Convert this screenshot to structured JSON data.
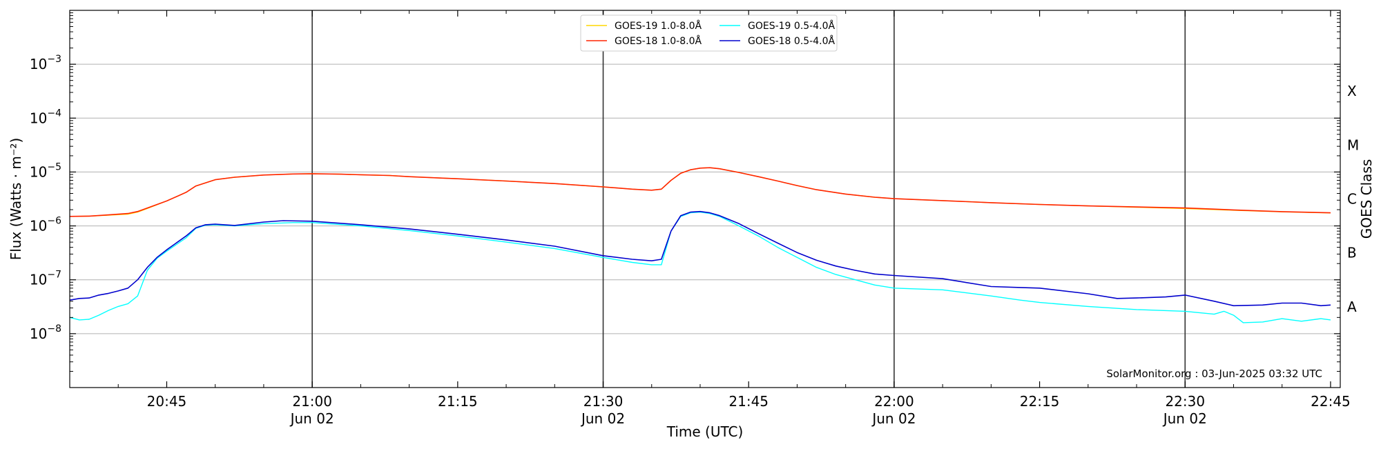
{
  "chart_data": {
    "type": "line",
    "title": "",
    "xlabel": "Time (UTC)",
    "ylabel": "Flux (Watts · m⁻²)",
    "right_label": "GOES Class",
    "yscale": "log",
    "ylim": [
      1e-09,
      0.01
    ],
    "xlim": [
      "20:35",
      "22:46"
    ],
    "grid": "horizontal",
    "legend_position": "top-center",
    "watermark": "SolarMonitor.org : 03-Jun-2025 03:32 UTC",
    "yticks": [
      {
        "value": 1e-08,
        "base": "10",
        "exp": "−8"
      },
      {
        "value": 1e-07,
        "base": "10",
        "exp": "−7"
      },
      {
        "value": 1e-06,
        "base": "10",
        "exp": "−6"
      },
      {
        "value": 1e-05,
        "base": "10",
        "exp": "−5"
      },
      {
        "value": 0.0001,
        "base": "10",
        "exp": "−4"
      },
      {
        "value": 0.001,
        "base": "10",
        "exp": "−3"
      }
    ],
    "xticks": [
      {
        "t": "20:45",
        "label": "20:45",
        "sub": ""
      },
      {
        "t": "21:00",
        "label": "21:00",
        "sub": "Jun 02"
      },
      {
        "t": "21:15",
        "label": "21:15",
        "sub": ""
      },
      {
        "t": "21:30",
        "label": "21:30",
        "sub": "Jun 02"
      },
      {
        "t": "21:45",
        "label": "21:45",
        "sub": ""
      },
      {
        "t": "22:00",
        "label": "22:00",
        "sub": "Jun 02"
      },
      {
        "t": "22:15",
        "label": "22:15",
        "sub": ""
      },
      {
        "t": "22:30",
        "label": "22:30",
        "sub": "Jun 02"
      },
      {
        "t": "22:45",
        "label": "22:45",
        "sub": ""
      }
    ],
    "vlines": [
      "21:00",
      "21:30",
      "22:00",
      "22:30"
    ],
    "goes_classes": [
      {
        "label": "A",
        "value": 3.16e-08
      },
      {
        "label": "B",
        "value": 3.16e-07
      },
      {
        "label": "C",
        "value": 3.16e-06
      },
      {
        "label": "M",
        "value": 3.16e-05
      },
      {
        "label": "X",
        "value": 0.000316
      }
    ],
    "series": [
      {
        "name": "GOES-19 1.0-8.0Å",
        "color": "#ffd700",
        "points": [
          [
            "20:35",
            1.5e-06
          ],
          [
            "20:37",
            1.52e-06
          ],
          [
            "20:39",
            1.58e-06
          ],
          [
            "20:41",
            1.65e-06
          ],
          [
            "20:42",
            1.8e-06
          ],
          [
            "20:43",
            2.1e-06
          ],
          [
            "20:45",
            2.9e-06
          ],
          [
            "20:47",
            4.2e-06
          ],
          [
            "20:48",
            5.5e-06
          ],
          [
            "20:50",
            7.2e-06
          ],
          [
            "20:52",
            8e-06
          ],
          [
            "20:55",
            8.8e-06
          ],
          [
            "20:58",
            9.2e-06
          ],
          [
            "21:00",
            9.3e-06
          ],
          [
            "21:03",
            9.1e-06
          ],
          [
            "21:05",
            8.9e-06
          ],
          [
            "21:08",
            8.6e-06
          ],
          [
            "21:10",
            8.2e-06
          ],
          [
            "21:15",
            7.5e-06
          ],
          [
            "21:20",
            6.8e-06
          ],
          [
            "21:25",
            6.1e-06
          ],
          [
            "21:30",
            5.3e-06
          ],
          [
            "21:33",
            4.8e-06
          ],
          [
            "21:35",
            4.6e-06
          ],
          [
            "21:36",
            4.8e-06
          ],
          [
            "21:37",
            7e-06
          ],
          [
            "21:38",
            9.5e-06
          ],
          [
            "21:39",
            1.1e-05
          ],
          [
            "21:40",
            1.18e-05
          ],
          [
            "21:41",
            1.2e-05
          ],
          [
            "21:42",
            1.15e-05
          ],
          [
            "21:44",
            9.8e-06
          ],
          [
            "21:46",
            8.2e-06
          ],
          [
            "21:48",
            6.8e-06
          ],
          [
            "21:50",
            5.6e-06
          ],
          [
            "21:52",
            4.7e-06
          ],
          [
            "21:55",
            3.9e-06
          ],
          [
            "21:58",
            3.4e-06
          ],
          [
            "22:00",
            3.2e-06
          ],
          [
            "22:05",
            2.95e-06
          ],
          [
            "22:10",
            2.7e-06
          ],
          [
            "22:15",
            2.5e-06
          ],
          [
            "22:20",
            2.35e-06
          ],
          [
            "22:25",
            2.22e-06
          ],
          [
            "22:30",
            2.1e-06
          ],
          [
            "22:35",
            1.95e-06
          ],
          [
            "22:40",
            1.82e-06
          ],
          [
            "22:45",
            1.74e-06
          ]
        ]
      },
      {
        "name": "GOES-18 1.0-8.0Å",
        "color": "#ff2400",
        "points": [
          [
            "20:35",
            1.5e-06
          ],
          [
            "20:37",
            1.52e-06
          ],
          [
            "20:39",
            1.6e-06
          ],
          [
            "20:41",
            1.7e-06
          ],
          [
            "20:42",
            1.85e-06
          ],
          [
            "20:43",
            2.15e-06
          ],
          [
            "20:45",
            2.9e-06
          ],
          [
            "20:47",
            4.2e-06
          ],
          [
            "20:48",
            5.5e-06
          ],
          [
            "20:50",
            7.2e-06
          ],
          [
            "20:52",
            8e-06
          ],
          [
            "20:55",
            8.8e-06
          ],
          [
            "20:58",
            9.2e-06
          ],
          [
            "21:00",
            9.3e-06
          ],
          [
            "21:03",
            9.1e-06
          ],
          [
            "21:05",
            8.9e-06
          ],
          [
            "21:08",
            8.6e-06
          ],
          [
            "21:10",
            8.2e-06
          ],
          [
            "21:15",
            7.5e-06
          ],
          [
            "21:20",
            6.8e-06
          ],
          [
            "21:25",
            6.1e-06
          ],
          [
            "21:30",
            5.3e-06
          ],
          [
            "21:33",
            4.8e-06
          ],
          [
            "21:35",
            4.6e-06
          ],
          [
            "21:36",
            4.8e-06
          ],
          [
            "21:37",
            7e-06
          ],
          [
            "21:38",
            9.5e-06
          ],
          [
            "21:39",
            1.1e-05
          ],
          [
            "21:40",
            1.18e-05
          ],
          [
            "21:41",
            1.2e-05
          ],
          [
            "21:42",
            1.15e-05
          ],
          [
            "21:44",
            9.8e-06
          ],
          [
            "21:46",
            8.2e-06
          ],
          [
            "21:48",
            6.8e-06
          ],
          [
            "21:50",
            5.6e-06
          ],
          [
            "21:52",
            4.7e-06
          ],
          [
            "21:55",
            3.9e-06
          ],
          [
            "21:58",
            3.4e-06
          ],
          [
            "22:00",
            3.2e-06
          ],
          [
            "22:05",
            2.95e-06
          ],
          [
            "22:10",
            2.7e-06
          ],
          [
            "22:15",
            2.5e-06
          ],
          [
            "22:20",
            2.35e-06
          ],
          [
            "22:25",
            2.25e-06
          ],
          [
            "22:30",
            2.15e-06
          ],
          [
            "22:35",
            1.98e-06
          ],
          [
            "22:40",
            1.84e-06
          ],
          [
            "22:45",
            1.75e-06
          ]
        ]
      },
      {
        "name": "GOES-19 0.5-4.0Å",
        "color": "#00ffff",
        "points": [
          [
            "20:35",
            2e-08
          ],
          [
            "20:36",
            1.8e-08
          ],
          [
            "20:37",
            1.85e-08
          ],
          [
            "20:38",
            2.2e-08
          ],
          [
            "20:39",
            2.7e-08
          ],
          [
            "20:40",
            3.2e-08
          ],
          [
            "20:41",
            3.6e-08
          ],
          [
            "20:42",
            5e-08
          ],
          [
            "20:43",
            1.5e-07
          ],
          [
            "20:44",
            2.5e-07
          ],
          [
            "20:45",
            3.4e-07
          ],
          [
            "20:47",
            6e-07
          ],
          [
            "20:48",
            9e-07
          ],
          [
            "20:49",
            1.03e-06
          ],
          [
            "20:50",
            1.05e-06
          ],
          [
            "20:52",
            1e-06
          ],
          [
            "20:55",
            1.1e-06
          ],
          [
            "20:58",
            1.15e-06
          ],
          [
            "21:00",
            1.15e-06
          ],
          [
            "21:05",
            1e-06
          ],
          [
            "21:10",
            8.2e-07
          ],
          [
            "21:15",
            6.5e-07
          ],
          [
            "21:20",
            5e-07
          ],
          [
            "21:25",
            3.8e-07
          ],
          [
            "21:30",
            2.6e-07
          ],
          [
            "21:33",
            2.1e-07
          ],
          [
            "21:35",
            1.9e-07
          ],
          [
            "21:36",
            1.9e-07
          ],
          [
            "21:37",
            8e-07
          ],
          [
            "21:38",
            1.5e-06
          ],
          [
            "21:39",
            1.75e-06
          ],
          [
            "21:40",
            1.8e-06
          ],
          [
            "21:41",
            1.7e-06
          ],
          [
            "21:42",
            1.5e-06
          ],
          [
            "21:44",
            1e-06
          ],
          [
            "21:46",
            6.5e-07
          ],
          [
            "21:48",
            4e-07
          ],
          [
            "21:50",
            2.6e-07
          ],
          [
            "21:52",
            1.7e-07
          ],
          [
            "21:54",
            1.25e-07
          ],
          [
            "21:56",
            1e-07
          ],
          [
            "21:58",
            8e-08
          ],
          [
            "22:00",
            7e-08
          ],
          [
            "22:05",
            6.5e-08
          ],
          [
            "22:10",
            5e-08
          ],
          [
            "22:13",
            4.2e-08
          ],
          [
            "22:15",
            3.8e-08
          ],
          [
            "22:20",
            3.2e-08
          ],
          [
            "22:25",
            2.8e-08
          ],
          [
            "22:30",
            2.6e-08
          ],
          [
            "22:33",
            2.3e-08
          ],
          [
            "22:34",
            2.6e-08
          ],
          [
            "22:35",
            2.2e-08
          ],
          [
            "22:36",
            1.6e-08
          ],
          [
            "22:38",
            1.65e-08
          ],
          [
            "22:40",
            1.9e-08
          ],
          [
            "22:42",
            1.7e-08
          ],
          [
            "22:44",
            1.9e-08
          ],
          [
            "22:45",
            1.8e-08
          ]
        ]
      },
      {
        "name": "GOES-18 0.5-4.0Å",
        "color": "#0000cd",
        "points": [
          [
            "20:35",
            4.2e-08
          ],
          [
            "20:36",
            4.5e-08
          ],
          [
            "20:37",
            4.6e-08
          ],
          [
            "20:38",
            5.2e-08
          ],
          [
            "20:39",
            5.6e-08
          ],
          [
            "20:40",
            6.2e-08
          ],
          [
            "20:41",
            7e-08
          ],
          [
            "20:42",
            1e-07
          ],
          [
            "20:43",
            1.7e-07
          ],
          [
            "20:44",
            2.6e-07
          ],
          [
            "20:45",
            3.6e-07
          ],
          [
            "20:47",
            6.5e-07
          ],
          [
            "20:48",
            9.2e-07
          ],
          [
            "20:49",
            1.05e-06
          ],
          [
            "20:50",
            1.08e-06
          ],
          [
            "20:52",
            1.02e-06
          ],
          [
            "20:55",
            1.18e-06
          ],
          [
            "20:57",
            1.25e-06
          ],
          [
            "21:00",
            1.22e-06
          ],
          [
            "21:05",
            1.05e-06
          ],
          [
            "21:10",
            8.8e-07
          ],
          [
            "21:15",
            7e-07
          ],
          [
            "21:20",
            5.5e-07
          ],
          [
            "21:25",
            4.2e-07
          ],
          [
            "21:30",
            2.8e-07
          ],
          [
            "21:33",
            2.4e-07
          ],
          [
            "21:35",
            2.25e-07
          ],
          [
            "21:36",
            2.4e-07
          ],
          [
            "21:37",
            8e-07
          ],
          [
            "21:38",
            1.55e-06
          ],
          [
            "21:39",
            1.8e-06
          ],
          [
            "21:40",
            1.85e-06
          ],
          [
            "21:41",
            1.75e-06
          ],
          [
            "21:42",
            1.55e-06
          ],
          [
            "21:44",
            1.1e-06
          ],
          [
            "21:46",
            7.2e-07
          ],
          [
            "21:48",
            4.8e-07
          ],
          [
            "21:50",
            3.2e-07
          ],
          [
            "21:52",
            2.3e-07
          ],
          [
            "21:54",
            1.8e-07
          ],
          [
            "21:56",
            1.5e-07
          ],
          [
            "21:58",
            1.28e-07
          ],
          [
            "22:00",
            1.2e-07
          ],
          [
            "22:05",
            1.05e-07
          ],
          [
            "22:10",
            7.5e-08
          ],
          [
            "22:13",
            7.2e-08
          ],
          [
            "22:15",
            7e-08
          ],
          [
            "22:20",
            5.5e-08
          ],
          [
            "22:23",
            4.5e-08
          ],
          [
            "22:25",
            4.6e-08
          ],
          [
            "22:28",
            4.8e-08
          ],
          [
            "22:30",
            5.2e-08
          ],
          [
            "22:33",
            4e-08
          ],
          [
            "22:35",
            3.3e-08
          ],
          [
            "22:38",
            3.4e-08
          ],
          [
            "22:40",
            3.7e-08
          ],
          [
            "22:42",
            3.7e-08
          ],
          [
            "22:44",
            3.3e-08
          ],
          [
            "22:45",
            3.4e-08
          ]
        ]
      }
    ]
  }
}
